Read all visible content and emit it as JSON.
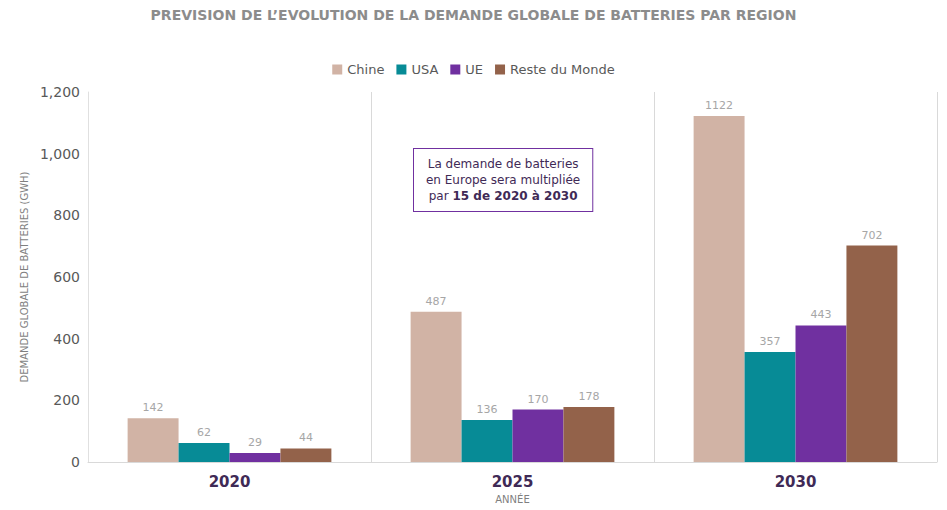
{
  "chart_data": {
    "type": "bar",
    "title": "PREVISION DE L’EVOLUTION DE LA DEMANDE GLOBALE DE BATTERIES PAR REGION",
    "x_label": "ANNÉE",
    "y_label": "DEMANDE GLOBALE DE BATTERIES (GWH)",
    "categories": [
      "2020",
      "2025",
      "2030"
    ],
    "series": [
      {
        "name": "Chine",
        "color": "#d1b3a5",
        "values": [
          142,
          487,
          1122
        ]
      },
      {
        "name": "USA",
        "color": "#078b96",
        "values": [
          62,
          136,
          357
        ]
      },
      {
        "name": "UE",
        "color": "#7030a0",
        "values": [
          29,
          170,
          443
        ]
      },
      {
        "name": "Reste du Monde",
        "color": "#93624a",
        "values": [
          44,
          178,
          702
        ]
      }
    ],
    "annotation": {
      "lines": [
        "La demande de batteries",
        "en Europe sera multipliée",
        "par"
      ],
      "emphasis": "15 de 2020 à 2030"
    },
    "ylim": [
      0,
      1200
    ],
    "yticks": [
      0,
      200,
      400,
      600,
      800,
      1000,
      1200
    ],
    "grid": false,
    "legend": "top",
    "data_labels": true
  }
}
